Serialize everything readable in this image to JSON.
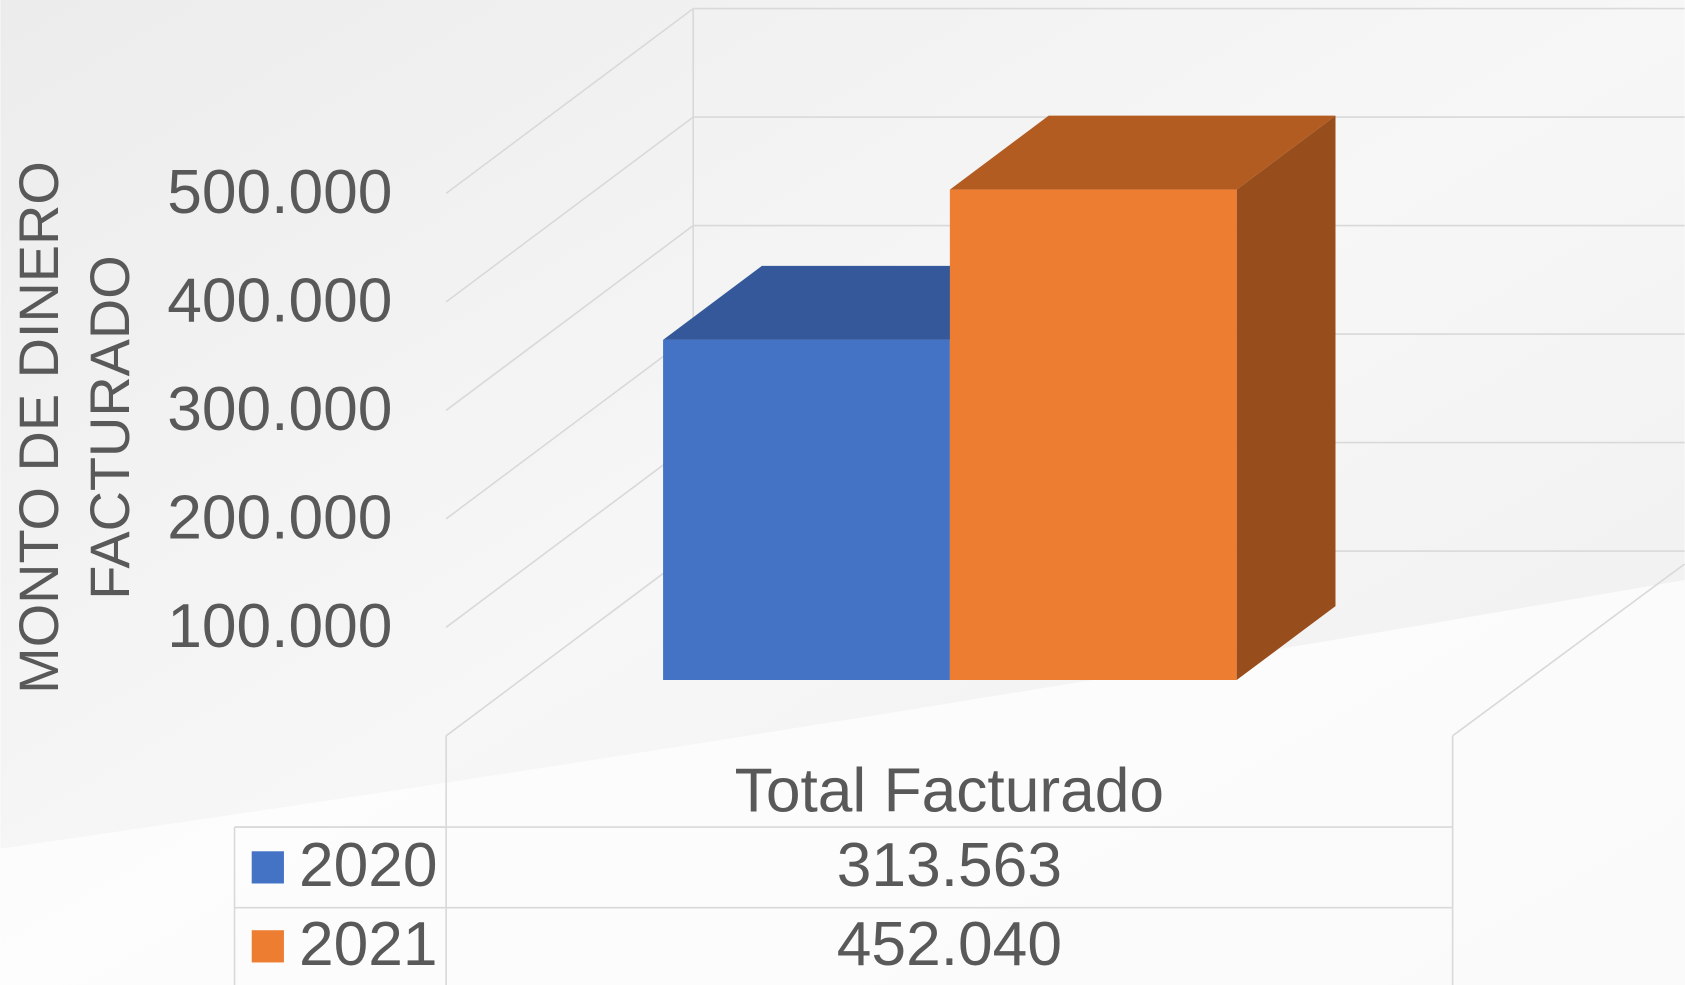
{
  "chart_data": {
    "type": "bar3d",
    "y_label_lines": [
      "MONTO DE DINERO",
      "FACTURADO"
    ],
    "categories": [
      "Total Facturado"
    ],
    "series": [
      {
        "name": "2020",
        "color": "#4472c4",
        "top_color": "#34589a",
        "side_color": "#2f4f8a",
        "values": [
          313563
        ],
        "value_labels": [
          "313.563"
        ]
      },
      {
        "name": "2021",
        "color": "#ed7d31",
        "top_color": "#b35c21",
        "side_color": "#974e1c",
        "values": [
          452040
        ],
        "value_labels": [
          "452.040"
        ]
      }
    ],
    "ylim": [
      0,
      500000
    ],
    "yticks": [
      {
        "value": 100000,
        "label": "100.000"
      },
      {
        "value": 200000,
        "label": "200.000"
      },
      {
        "value": 300000,
        "label": "300.000"
      },
      {
        "value": 400000,
        "label": "400.000"
      },
      {
        "value": 500000,
        "label": "500.000"
      }
    ],
    "grid": true,
    "data_table": true
  }
}
